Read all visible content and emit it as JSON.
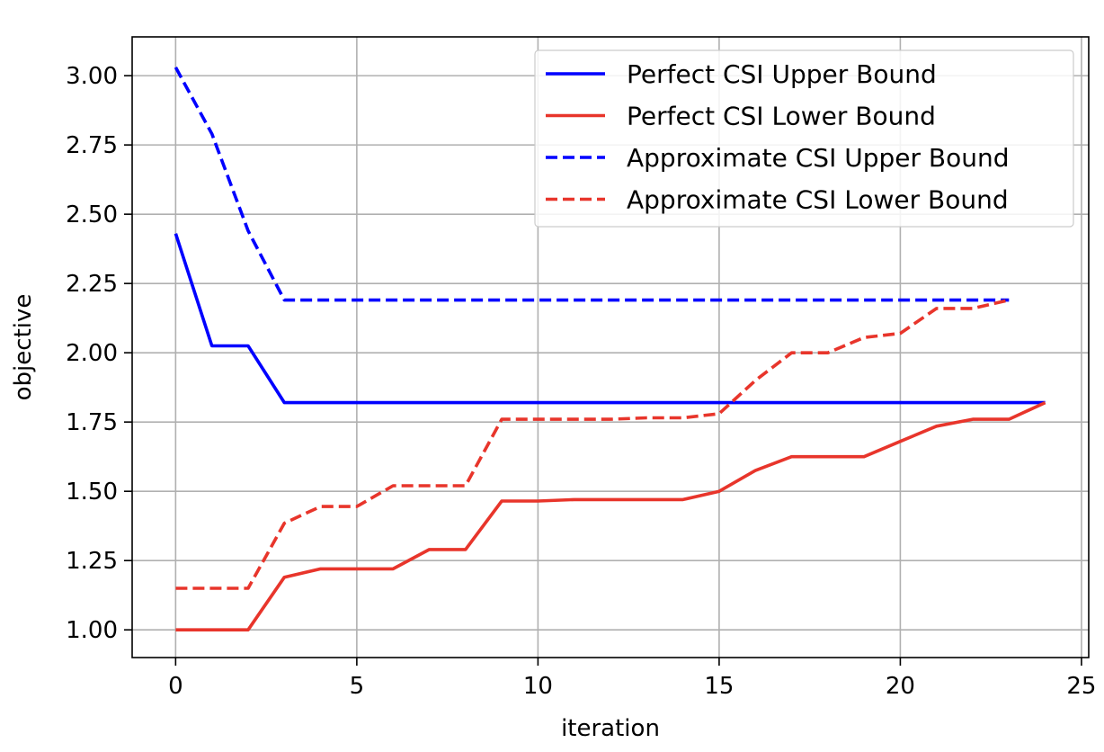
{
  "chart_data": {
    "type": "line",
    "title": "",
    "xlabel": "iteration",
    "ylabel": "objective",
    "xlim": [
      -1.2,
      25.2
    ],
    "ylim": [
      0.9,
      3.14
    ],
    "xticks": [
      0,
      5,
      10,
      15,
      20,
      25
    ],
    "xtick_labels": [
      "0",
      "5",
      "10",
      "15",
      "20",
      "25"
    ],
    "yticks": [
      1.0,
      1.25,
      1.5,
      1.75,
      2.0,
      2.25,
      2.5,
      2.75,
      3.0
    ],
    "ytick_labels": [
      "1.00",
      "1.25",
      "1.50",
      "1.75",
      "2.00",
      "2.25",
      "2.50",
      "2.75",
      "3.00"
    ],
    "grid": true,
    "legend_position": "top-right",
    "series": [
      {
        "name": "Perfect CSI Upper Bound",
        "color": "#0000ff",
        "dash": "solid",
        "x": [
          0,
          1,
          2,
          3,
          4,
          5,
          6,
          7,
          8,
          9,
          10,
          11,
          12,
          13,
          14,
          15,
          16,
          17,
          18,
          19,
          20,
          21,
          22,
          23,
          24
        ],
        "y": [
          2.43,
          2.025,
          2.025,
          1.82,
          1.82,
          1.82,
          1.82,
          1.82,
          1.82,
          1.82,
          1.82,
          1.82,
          1.82,
          1.82,
          1.82,
          1.82,
          1.82,
          1.82,
          1.82,
          1.82,
          1.82,
          1.82,
          1.82,
          1.82,
          1.82
        ]
      },
      {
        "name": "Perfect CSI Lower Bound",
        "color": "#e8352b",
        "dash": "solid",
        "x": [
          0,
          1,
          2,
          3,
          4,
          5,
          6,
          7,
          8,
          9,
          10,
          11,
          12,
          13,
          14,
          15,
          16,
          17,
          18,
          19,
          20,
          21,
          22,
          23,
          24
        ],
        "y": [
          1.0,
          1.0,
          1.0,
          1.19,
          1.22,
          1.22,
          1.22,
          1.29,
          1.29,
          1.465,
          1.465,
          1.47,
          1.47,
          1.47,
          1.47,
          1.5,
          1.575,
          1.625,
          1.625,
          1.625,
          1.68,
          1.735,
          1.76,
          1.76,
          1.82
        ]
      },
      {
        "name": "Approximate CSI Upper Bound",
        "color": "#0000ff",
        "dash": "dashed",
        "x": [
          0,
          1,
          2,
          3,
          4,
          5,
          6,
          7,
          8,
          9,
          10,
          11,
          12,
          13,
          14,
          15,
          16,
          17,
          18,
          19,
          20,
          21,
          22,
          23
        ],
        "y": [
          3.03,
          2.79,
          2.44,
          2.19,
          2.19,
          2.19,
          2.19,
          2.19,
          2.19,
          2.19,
          2.19,
          2.19,
          2.19,
          2.19,
          2.19,
          2.19,
          2.19,
          2.19,
          2.19,
          2.19,
          2.19,
          2.19,
          2.19,
          2.19
        ]
      },
      {
        "name": "Approximate CSI Lower Bound",
        "color": "#e8352b",
        "dash": "dashed",
        "x": [
          0,
          1,
          2,
          3,
          4,
          5,
          6,
          7,
          8,
          9,
          10,
          11,
          12,
          13,
          14,
          15,
          16,
          17,
          18,
          19,
          20,
          21,
          22,
          23
        ],
        "y": [
          1.15,
          1.15,
          1.15,
          1.385,
          1.445,
          1.445,
          1.52,
          1.52,
          1.52,
          1.76,
          1.76,
          1.76,
          1.76,
          1.765,
          1.765,
          1.78,
          1.9,
          2.0,
          2.0,
          2.055,
          2.07,
          2.16,
          2.16,
          2.19
        ]
      }
    ]
  }
}
